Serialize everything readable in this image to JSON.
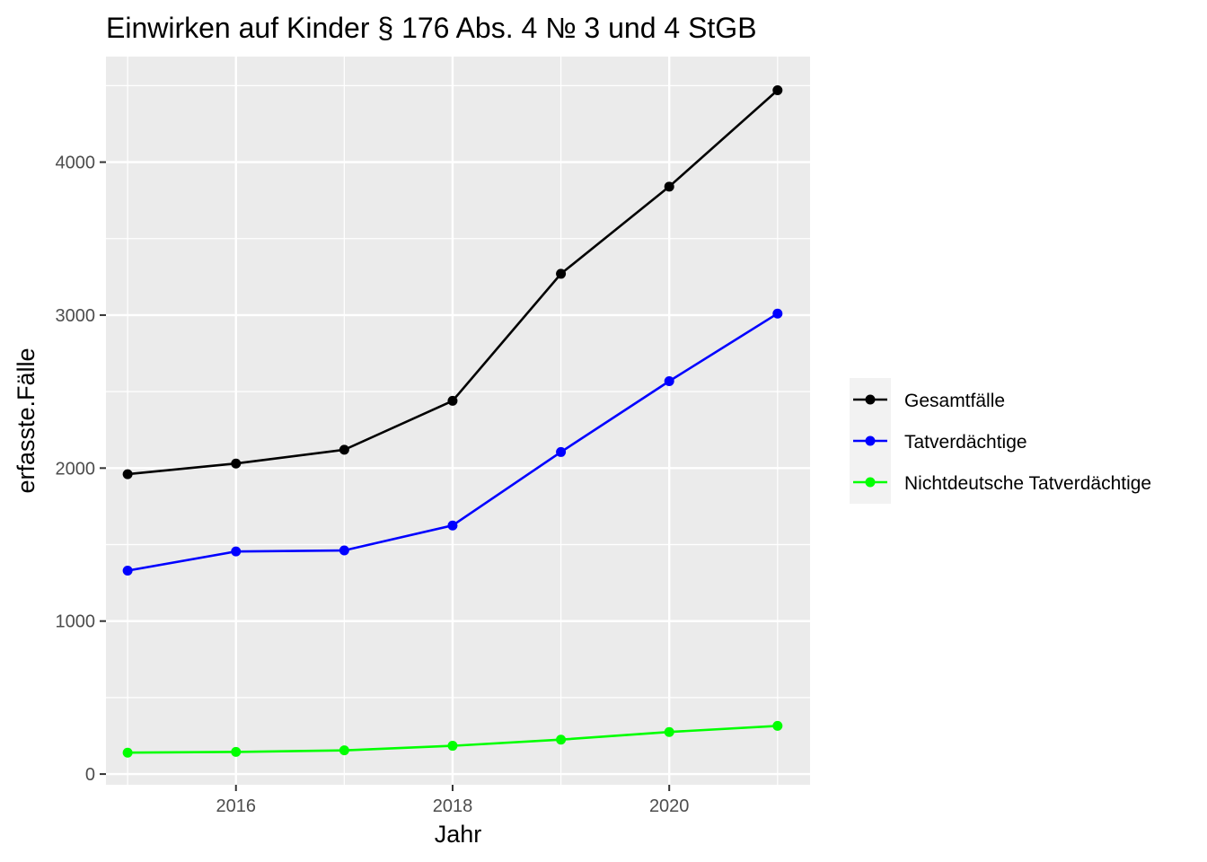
{
  "chart_data": {
    "type": "line",
    "title": "Einwirken auf Kinder § 176 Abs. 4 № 3 und 4 StGB",
    "xlabel": "Jahr",
    "ylabel": "erfasste.Fälle",
    "x": [
      2015,
      2016,
      2017,
      2018,
      2019,
      2020,
      2021
    ],
    "xlim": [
      2014.8,
      2021.3
    ],
    "ylim": [
      -70,
      4690
    ],
    "x_ticks": [
      2016,
      2018,
      2020
    ],
    "y_ticks": [
      0,
      1000,
      2000,
      3000,
      4000
    ],
    "x_tick_labels": [
      "2016",
      "2018",
      "2020"
    ],
    "y_tick_labels": [
      "0",
      "1000",
      "2000",
      "3000",
      "4000"
    ],
    "grid": true,
    "legend_position": "right",
    "background": "#ebebeb",
    "series": [
      {
        "name": "Gesamtfälle",
        "color": "#000000",
        "values": [
          1960,
          2030,
          2120,
          2440,
          3270,
          3840,
          4470
        ]
      },
      {
        "name": "Tatverdächtige",
        "color": "#0000ff",
        "values": [
          1330,
          1455,
          1462,
          1625,
          2105,
          2568,
          3010
        ]
      },
      {
        "name": "Nichtdeutsche Tatverdächtige",
        "color": "#00ff00",
        "values": [
          140,
          145,
          155,
          185,
          225,
          275,
          315
        ]
      }
    ]
  }
}
